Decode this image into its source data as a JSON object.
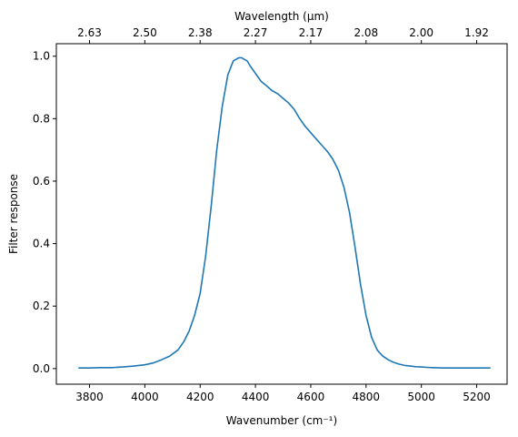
{
  "chart_data": {
    "type": "line",
    "xlabel": "Wavenumber (cm⁻¹)",
    "ylabel": "Filter response",
    "top_xlabel": "Wavelength (μm)",
    "xlim": [
      3680,
      5310
    ],
    "ylim": [
      -0.05,
      1.04
    ],
    "grid": false,
    "line_color": "#1f77b4",
    "x_ticks": [
      {
        "value": 3800,
        "label": "3800"
      },
      {
        "value": 4000,
        "label": "4000"
      },
      {
        "value": 4200,
        "label": "4200"
      },
      {
        "value": 4400,
        "label": "4400"
      },
      {
        "value": 4600,
        "label": "4600"
      },
      {
        "value": 4800,
        "label": "4800"
      },
      {
        "value": 5000,
        "label": "5000"
      },
      {
        "value": 5200,
        "label": "5200"
      }
    ],
    "y_ticks": [
      {
        "value": 0.0,
        "label": "0.0"
      },
      {
        "value": 0.2,
        "label": "0.2"
      },
      {
        "value": 0.4,
        "label": "0.4"
      },
      {
        "value": 0.6,
        "label": "0.6"
      },
      {
        "value": 0.8,
        "label": "0.8"
      },
      {
        "value": 1.0,
        "label": "1.0"
      }
    ],
    "top_ticks": [
      {
        "label": "2.63",
        "wavenumber": 3800
      },
      {
        "label": "2.50",
        "wavenumber": 4000
      },
      {
        "label": "2.38",
        "wavenumber": 4200
      },
      {
        "label": "2.27",
        "wavenumber": 4400
      },
      {
        "label": "2.17",
        "wavenumber": 4600
      },
      {
        "label": "2.08",
        "wavenumber": 4800
      },
      {
        "label": "2.00",
        "wavenumber": 5000
      },
      {
        "label": "1.92",
        "wavenumber": 5200
      }
    ],
    "series": [
      {
        "x": [
          3760,
          3800,
          3840,
          3880,
          3920,
          3960,
          4000,
          4030,
          4060,
          4090,
          4120,
          4140,
          4160,
          4180,
          4200,
          4220,
          4240,
          4260,
          4280,
          4300,
          4320,
          4340,
          4350,
          4360,
          4370,
          4380,
          4400,
          4420,
          4440,
          4460,
          4480,
          4500,
          4520,
          4540,
          4560,
          4580,
          4600,
          4620,
          4640,
          4660,
          4680,
          4700,
          4720,
          4740,
          4760,
          4780,
          4800,
          4820,
          4840,
          4860,
          4880,
          4900,
          4920,
          4940,
          4960,
          4980,
          5000,
          5020,
          5040,
          5080,
          5120,
          5160,
          5200,
          5250
        ],
        "y": [
          0.002,
          0.002,
          0.003,
          0.003,
          0.005,
          0.008,
          0.012,
          0.018,
          0.028,
          0.04,
          0.06,
          0.085,
          0.12,
          0.17,
          0.24,
          0.36,
          0.52,
          0.7,
          0.84,
          0.94,
          0.985,
          0.995,
          0.995,
          0.99,
          0.985,
          0.97,
          0.945,
          0.92,
          0.905,
          0.89,
          0.88,
          0.865,
          0.85,
          0.83,
          0.8,
          0.775,
          0.755,
          0.735,
          0.715,
          0.695,
          0.67,
          0.635,
          0.58,
          0.5,
          0.39,
          0.27,
          0.17,
          0.1,
          0.06,
          0.04,
          0.028,
          0.02,
          0.014,
          0.01,
          0.008,
          0.006,
          0.005,
          0.004,
          0.003,
          0.002,
          0.002,
          0.002,
          0.002,
          0.002
        ]
      }
    ]
  }
}
